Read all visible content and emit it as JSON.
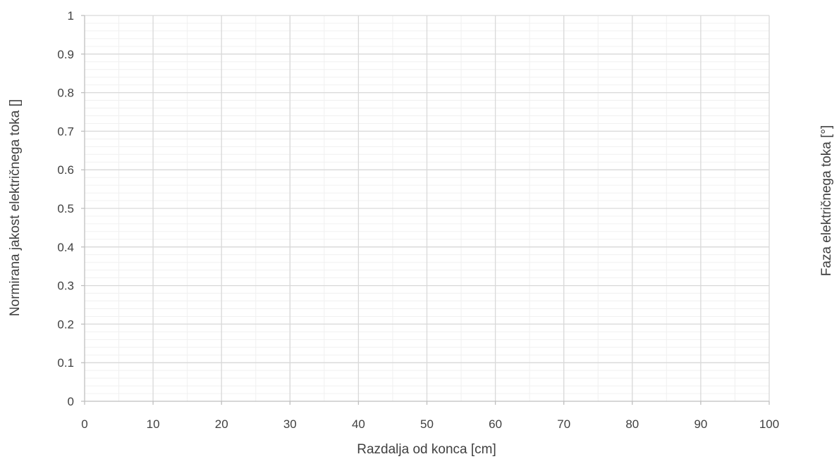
{
  "chart_data": {
    "type": "line",
    "title": "",
    "xlabel": "Razdalja od konca [cm]",
    "ylabel": "Normirana jakost električnega toka []",
    "y2label": "Faza električnega toka [°]",
    "xlim": [
      0,
      100
    ],
    "ylim": [
      0,
      1
    ],
    "x_ticks": [
      0,
      10,
      20,
      30,
      40,
      50,
      60,
      70,
      80,
      90,
      100
    ],
    "x_tick_labels": [
      "0",
      "10",
      "20",
      "30",
      "40",
      "50",
      "60",
      "70",
      "80",
      "90",
      "100"
    ],
    "y_ticks": [
      0,
      0.1,
      0.2,
      0.3,
      0.4,
      0.5,
      0.6,
      0.7,
      0.8,
      0.9,
      1
    ],
    "y_tick_labels": [
      "0",
      "0.1",
      "0.2",
      "0.3",
      "0.4",
      "0.5",
      "0.6",
      "0.7",
      "0.8",
      "0.9",
      "1"
    ],
    "x_minor_step": 5,
    "y_minor_step": 0.02,
    "grid": true,
    "series": [],
    "colors": {
      "major_grid": "#d9d9d9",
      "minor_grid": "#f0f0f0",
      "axis": "#bfbfbf",
      "text": "#404040"
    }
  }
}
